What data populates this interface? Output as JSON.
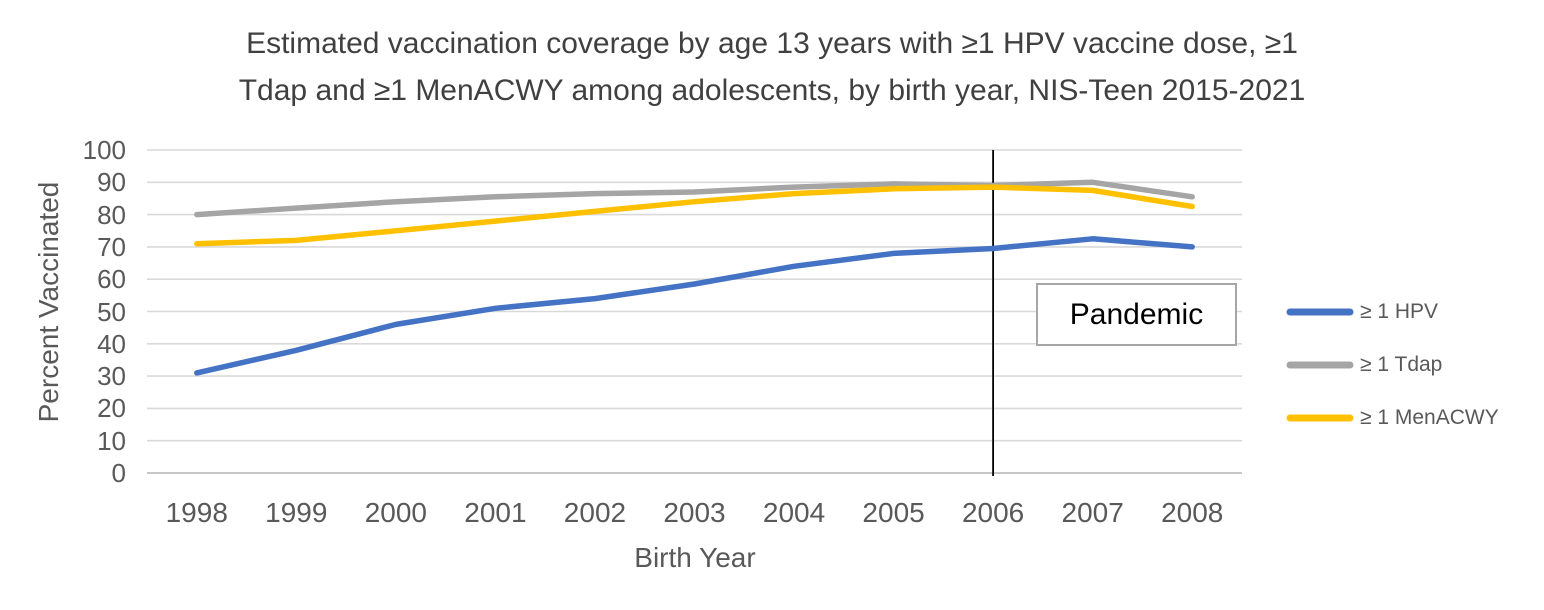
{
  "title_lines": [
    "Estimated vaccination coverage by age 13 years with ≥1 HPV vaccine dose, ≥1",
    "Tdap and ≥1 MenACWY among adolescents, by birth year, NIS-Teen 2015-2021"
  ],
  "chart_data": {
    "type": "line",
    "title": "Estimated vaccination coverage by age 13 years with ≥1 HPV vaccine dose, ≥1 Tdap and ≥1 MenACWY among adolescents, by birth year, NIS-Teen 2015-2021",
    "xlabel": "Birth Year",
    "ylabel": "Percent Vaccinated",
    "categories": [
      "1998",
      "1999",
      "2000",
      "2001",
      "2002",
      "2003",
      "2004",
      "2005",
      "2006",
      "2007",
      "2008"
    ],
    "series": [
      {
        "name": "≥ 1 HPV",
        "color": "#4472C4",
        "values": [
          31,
          38,
          46,
          51,
          54,
          58.5,
          64,
          68,
          69.5,
          72.5,
          70
        ]
      },
      {
        "name": "≥ 1 Tdap",
        "color": "#A5A5A5",
        "values": [
          80,
          82,
          84,
          85.5,
          86.5,
          87,
          88.5,
          89.5,
          89,
          90,
          85.5
        ]
      },
      {
        "name": "≥ 1 MenACWY",
        "color": "#FFC000",
        "values": [
          71,
          72,
          75,
          78,
          81,
          84,
          86.5,
          88,
          88.5,
          87.5,
          82.5
        ]
      }
    ],
    "ylim": [
      0,
      100
    ],
    "yticks": [
      0,
      10,
      20,
      30,
      40,
      50,
      60,
      70,
      80,
      90,
      100
    ],
    "grid": true,
    "gridline_color": "#D9D9D9",
    "axis_line_color": "#BFBFBF",
    "legend_position": "right",
    "annotation": {
      "label": "Pandemic",
      "x_category": "2006",
      "line_color": "#000000"
    },
    "background": "#FFFFFF"
  }
}
